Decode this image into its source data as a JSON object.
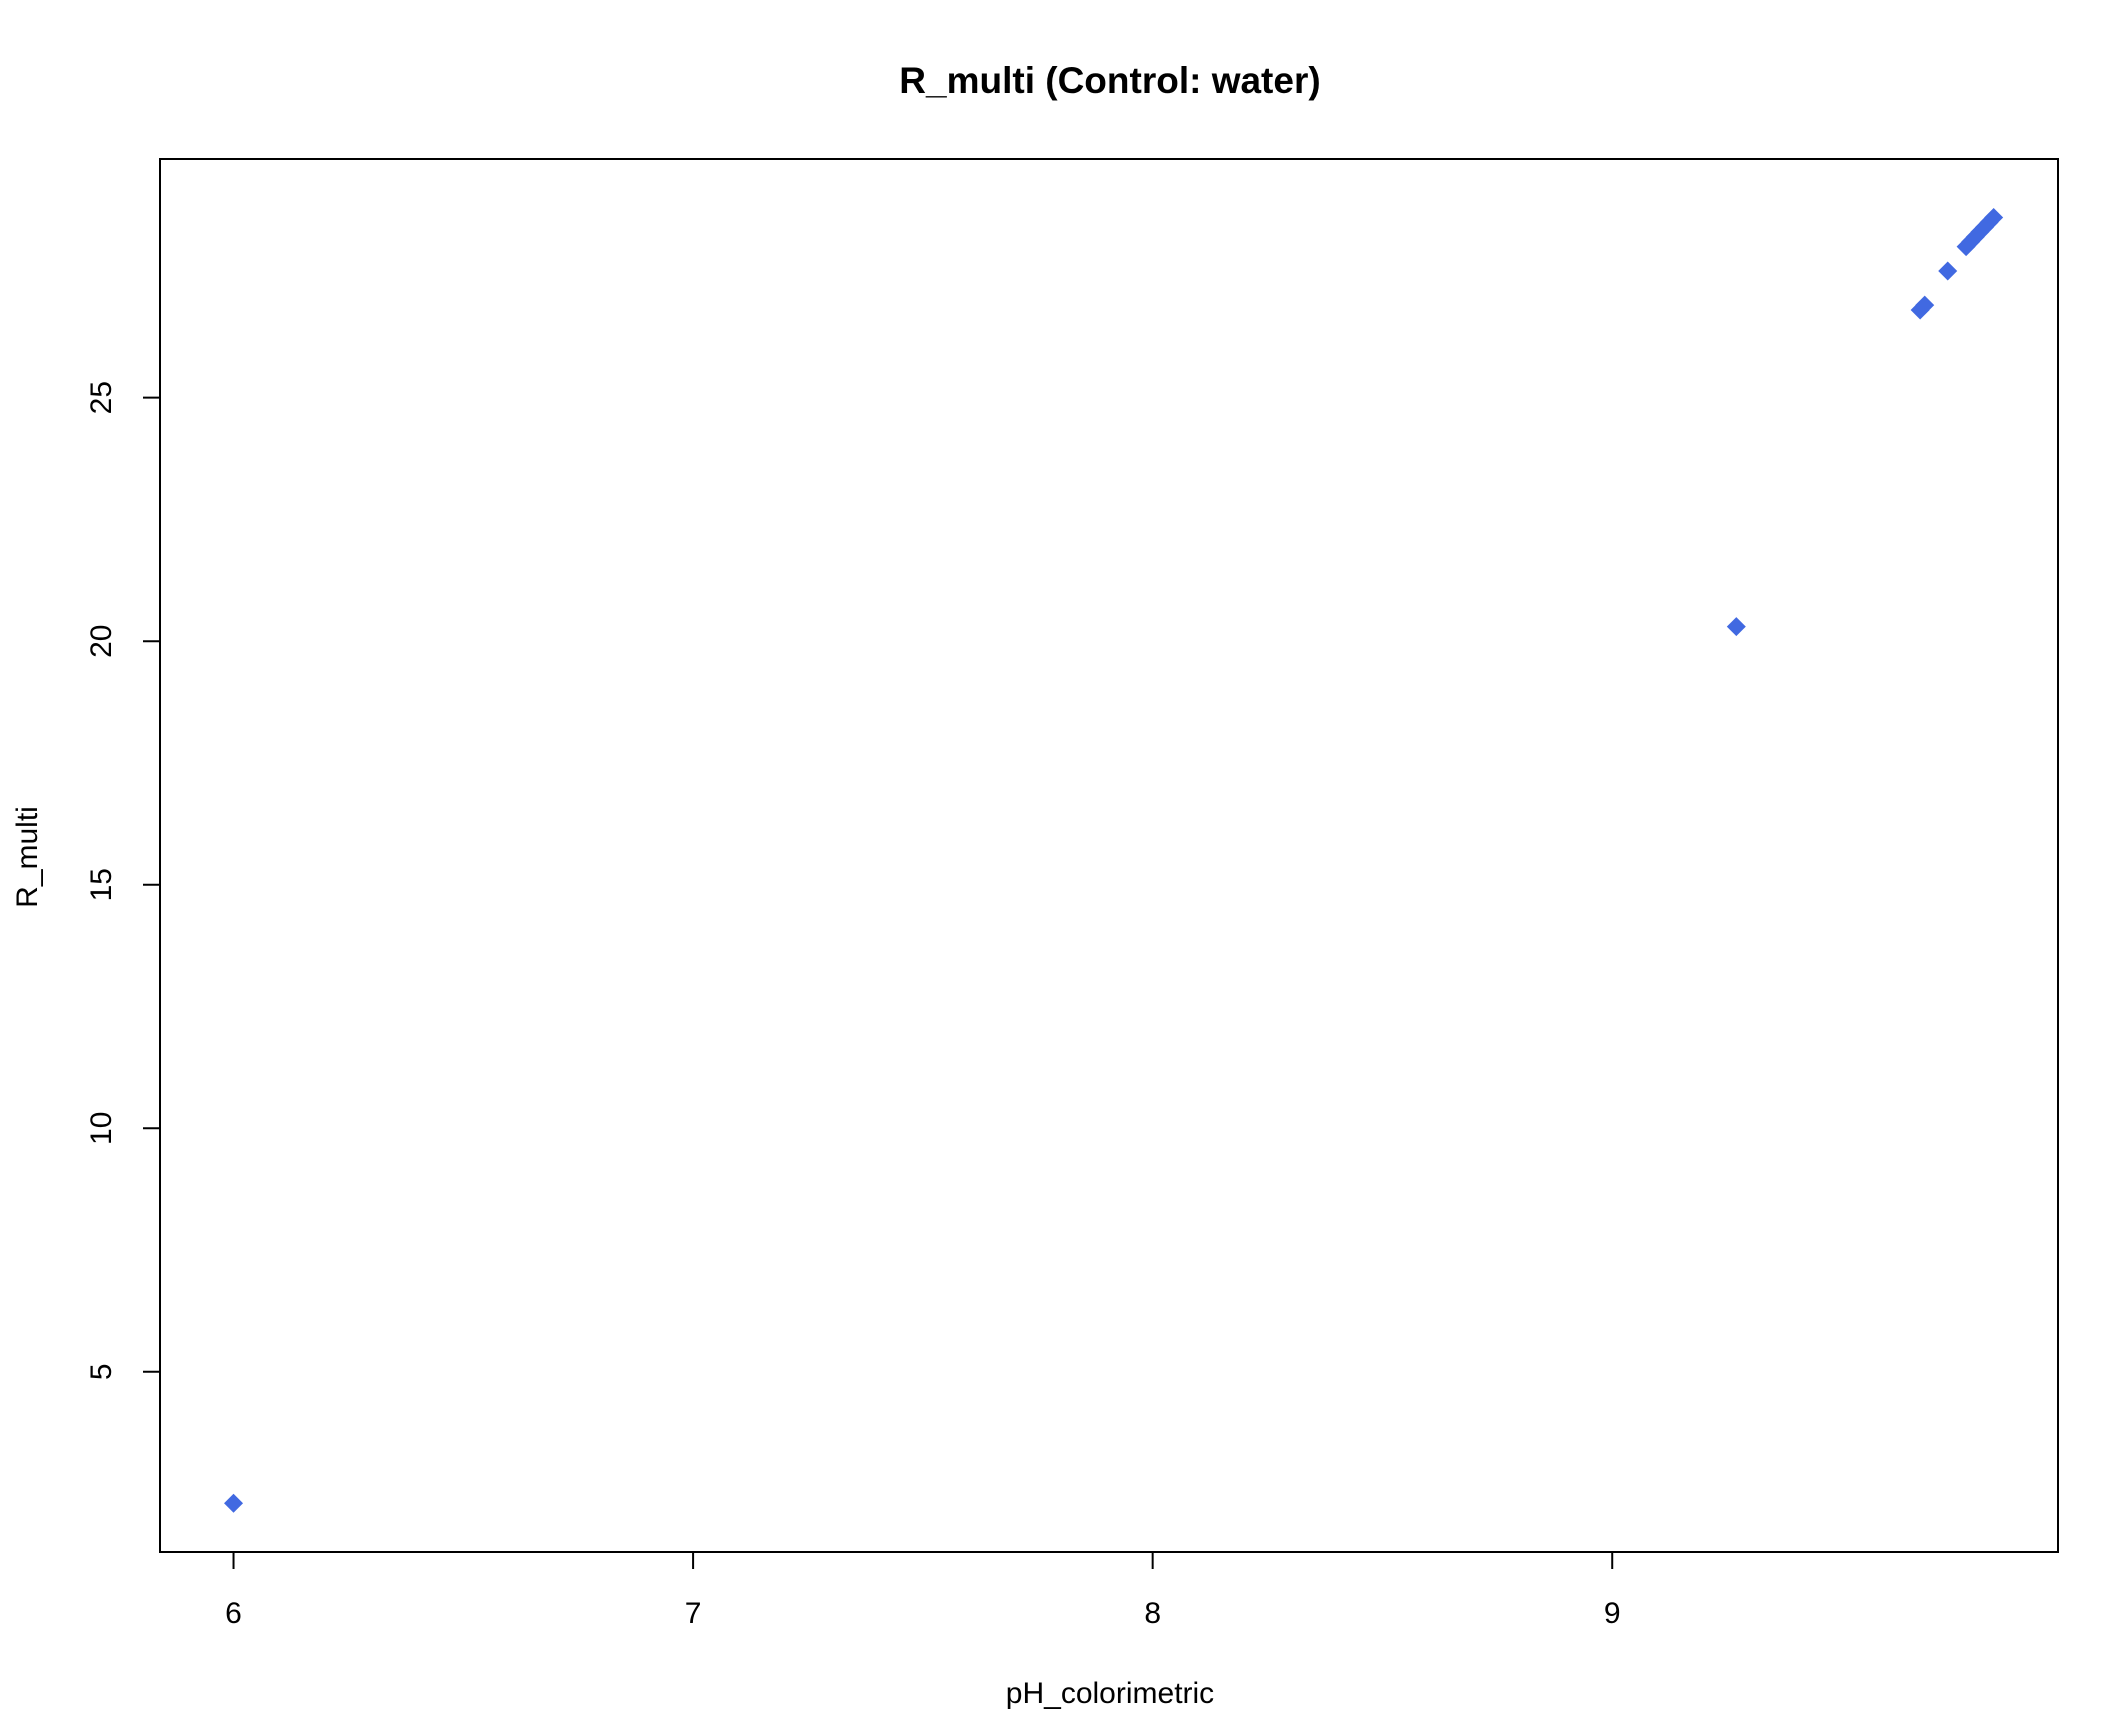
{
  "chart_data": {
    "type": "scatter",
    "title": "R_multi (Control: water)",
    "xlabel": "pH_colorimetric",
    "ylabel": "R_multi",
    "xlim": [
      5.84,
      9.97
    ],
    "ylim": [
      1.3,
      29.9
    ],
    "x_ticks": [
      6,
      7,
      8,
      9
    ],
    "y_ticks": [
      5,
      10,
      15,
      20,
      25
    ],
    "grid": false,
    "legend": "none",
    "marker": "diamond",
    "marker_color": "#4169E1",
    "points": [
      {
        "x": 6.0,
        "y": 2.3
      },
      {
        "x": 9.27,
        "y": 20.3
      },
      {
        "x": 9.67,
        "y": 26.8
      },
      {
        "x": 9.68,
        "y": 26.9
      },
      {
        "x": 9.73,
        "y": 27.6
      },
      {
        "x": 9.77,
        "y": 28.1
      },
      {
        "x": 9.78,
        "y": 28.2
      },
      {
        "x": 9.79,
        "y": 28.3
      },
      {
        "x": 9.8,
        "y": 28.4
      },
      {
        "x": 9.81,
        "y": 28.5
      },
      {
        "x": 9.82,
        "y": 28.6
      },
      {
        "x": 9.83,
        "y": 28.7
      }
    ]
  }
}
